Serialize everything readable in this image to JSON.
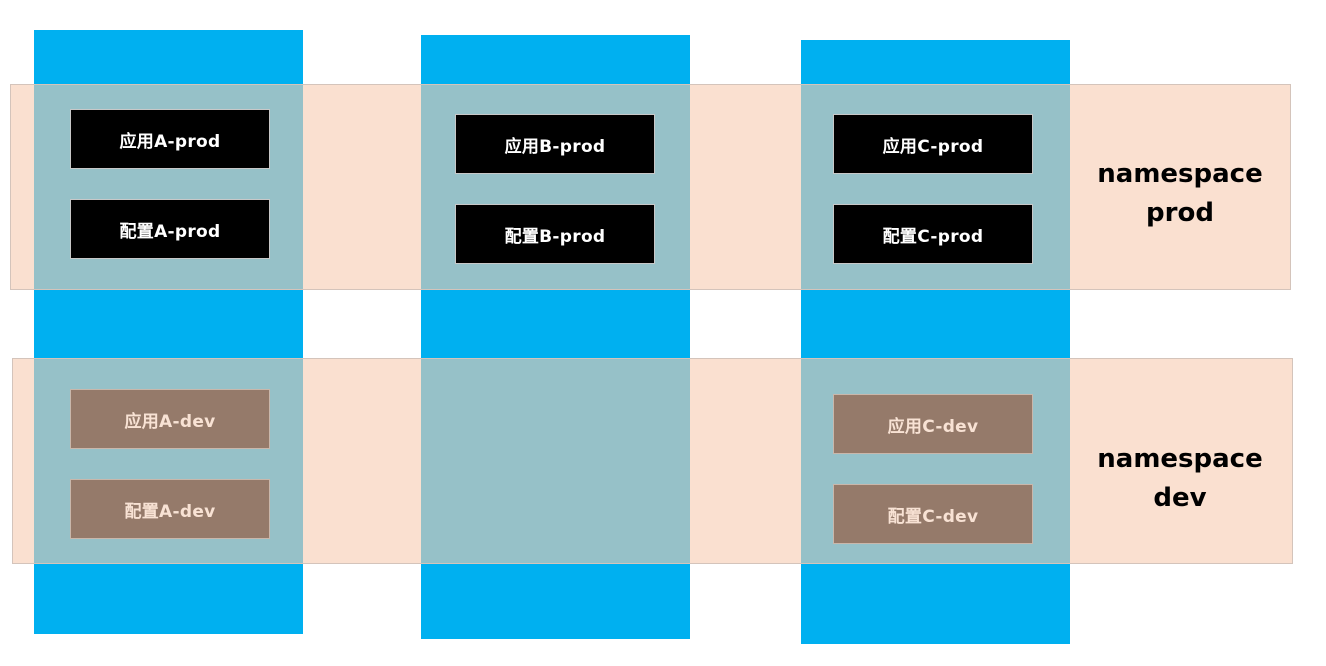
{
  "colors": {
    "app_column": "#00b0f0",
    "namespace_band": "#fae0d0",
    "overlap": "#96c1c8",
    "prod_box": "#000000",
    "dev_box": "#957a6a"
  },
  "namespaces": {
    "prod": {
      "line1": "namespace",
      "line2": "prod"
    },
    "dev": {
      "line1": "namespace",
      "line2": "dev"
    }
  },
  "apps": {
    "a": {
      "prod_app": "应用A-prod",
      "prod_config": "配置A-prod",
      "dev_app": "应用A-dev",
      "dev_config": "配置A-dev"
    },
    "b": {
      "prod_app": "应用B-prod",
      "prod_config": "配置B-prod"
    },
    "c": {
      "prod_app": "应用C-prod",
      "prod_config": "配置C-prod",
      "dev_app": "应用C-dev",
      "dev_config": "配置C-dev"
    }
  }
}
